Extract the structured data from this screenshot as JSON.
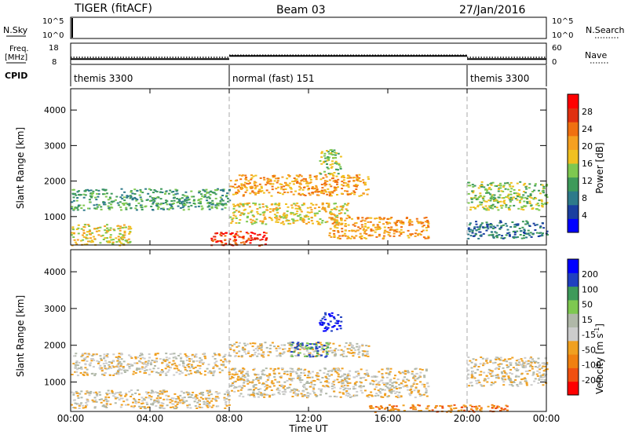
{
  "header": {
    "station": "TIGER (fitACF)",
    "beam": "Beam 03",
    "date": "27/Jan/2016"
  },
  "top_panels": {
    "nsky_label": "N.Sky",
    "nsky_ticks": [
      "10^5",
      "10^0"
    ],
    "nsearch_label": "N.Search",
    "nsearch_ticks": [
      "10^5",
      "10^0"
    ],
    "freq_label": "Freq.",
    "freq_unit": "[MHz]",
    "freq_ticks": [
      "18",
      "8"
    ],
    "nave_label": "Nave",
    "nave_ticks": [
      "60",
      "0"
    ],
    "cpid_label": "CPID",
    "cpid_segments": [
      {
        "label": "themis 3300",
        "start_hour": 0,
        "end_hour": 8
      },
      {
        "label": "normal (fast) 151",
        "start_hour": 8,
        "end_hour": 20
      },
      {
        "label": "themis 3300",
        "start_hour": 20,
        "end_hour": 24
      }
    ],
    "freq_values": [
      {
        "start_hour": 0,
        "end_hour": 8,
        "mhz": 10.5
      },
      {
        "start_hour": 8,
        "end_hour": 20,
        "mhz": 12
      },
      {
        "start_hour": 20,
        "end_hour": 24,
        "mhz": 10.5
      }
    ],
    "nave_values": [
      {
        "start_hour": 0,
        "end_hour": 8,
        "count": 20
      },
      {
        "start_hour": 8,
        "end_hour": 20,
        "count": 26
      },
      {
        "start_hour": 20,
        "end_hour": 24,
        "count": 20
      }
    ]
  },
  "chart_data": [
    {
      "type": "heatmap",
      "name": "power",
      "ylabel": "Slant Range [km]",
      "yticks": [
        "4000",
        "3000",
        "2000",
        "1000"
      ],
      "ylim": [
        200,
        4600
      ],
      "xlim": [
        0,
        24
      ],
      "colorbar_label": "Power [dB]",
      "colorbar_ticks": [
        "28",
        "24",
        "20",
        "16",
        "12",
        "8",
        "4"
      ],
      "colors": [
        "#0000ff",
        "#1a3fa0",
        "#2e7a8a",
        "#3e9a5a",
        "#7ec850",
        "#f0c020",
        "#f5a020",
        "#f07010",
        "#e03010",
        "#ff0000"
      ],
      "regions": [
        {
          "x": [
            0,
            8
          ],
          "y": [
            1200,
            1800
          ],
          "level": 3
        },
        {
          "x": [
            0,
            3
          ],
          "y": [
            200,
            800
          ],
          "level": 5
        },
        {
          "x": [
            8,
            15
          ],
          "y": [
            1600,
            2200
          ],
          "level": 6
        },
        {
          "x": [
            8,
            14
          ],
          "y": [
            800,
            1400
          ],
          "level": 5
        },
        {
          "x": [
            7,
            10
          ],
          "y": [
            200,
            600
          ],
          "level": 8
        },
        {
          "x": [
            13,
            18
          ],
          "y": [
            400,
            1000
          ],
          "level": 6
        },
        {
          "x": [
            12.5,
            13.6
          ],
          "y": [
            2200,
            2900
          ],
          "level": 4
        },
        {
          "x": [
            20,
            24
          ],
          "y": [
            1200,
            2000
          ],
          "level": 4
        },
        {
          "x": [
            20,
            24
          ],
          "y": [
            400,
            900
          ],
          "level": 2
        }
      ]
    },
    {
      "type": "heatmap",
      "name": "velocity",
      "ylabel": "Slant Range [km]",
      "yticks": [
        "4000",
        "3000",
        "2000",
        "1000"
      ],
      "ylim": [
        200,
        4600
      ],
      "xlim": [
        0,
        24
      ],
      "colorbar_label": "Velocity [m s",
      "colorbar_exp": "-1",
      "colorbar_close": "]",
      "colorbar_ticks": [
        "200",
        "100",
        "50",
        "15",
        "-15",
        "-50",
        "-100",
        "-200"
      ],
      "colors": [
        "#ff0000",
        "#f05010",
        "#f08010",
        "#f0a020",
        "#cccccc",
        "#b0b8a8",
        "#7ec850",
        "#3e9a5a",
        "#2040c0",
        "#0000ff"
      ],
      "regions": [
        {
          "x": [
            0,
            8
          ],
          "y": [
            1200,
            1800
          ],
          "level": 4
        },
        {
          "x": [
            0,
            8
          ],
          "y": [
            300,
            800
          ],
          "level": 4
        },
        {
          "x": [
            8,
            15
          ],
          "y": [
            1700,
            2100
          ],
          "level": 4
        },
        {
          "x": [
            11,
            13
          ],
          "y": [
            1700,
            2100
          ],
          "level": 7
        },
        {
          "x": [
            12.5,
            13.6
          ],
          "y": [
            2400,
            2900
          ],
          "level": 9
        },
        {
          "x": [
            8,
            18
          ],
          "y": [
            600,
            1400
          ],
          "level": 4
        },
        {
          "x": [
            15,
            22
          ],
          "y": [
            200,
            400
          ],
          "level": 2
        },
        {
          "x": [
            20,
            24
          ],
          "y": [
            900,
            1700
          ],
          "level": 4
        }
      ]
    }
  ],
  "x_axis": {
    "label": "Time UT",
    "ticks": [
      "00:00",
      "04:00",
      "08:00",
      "12:00",
      "16:00",
      "20:00",
      "00:00"
    ]
  }
}
